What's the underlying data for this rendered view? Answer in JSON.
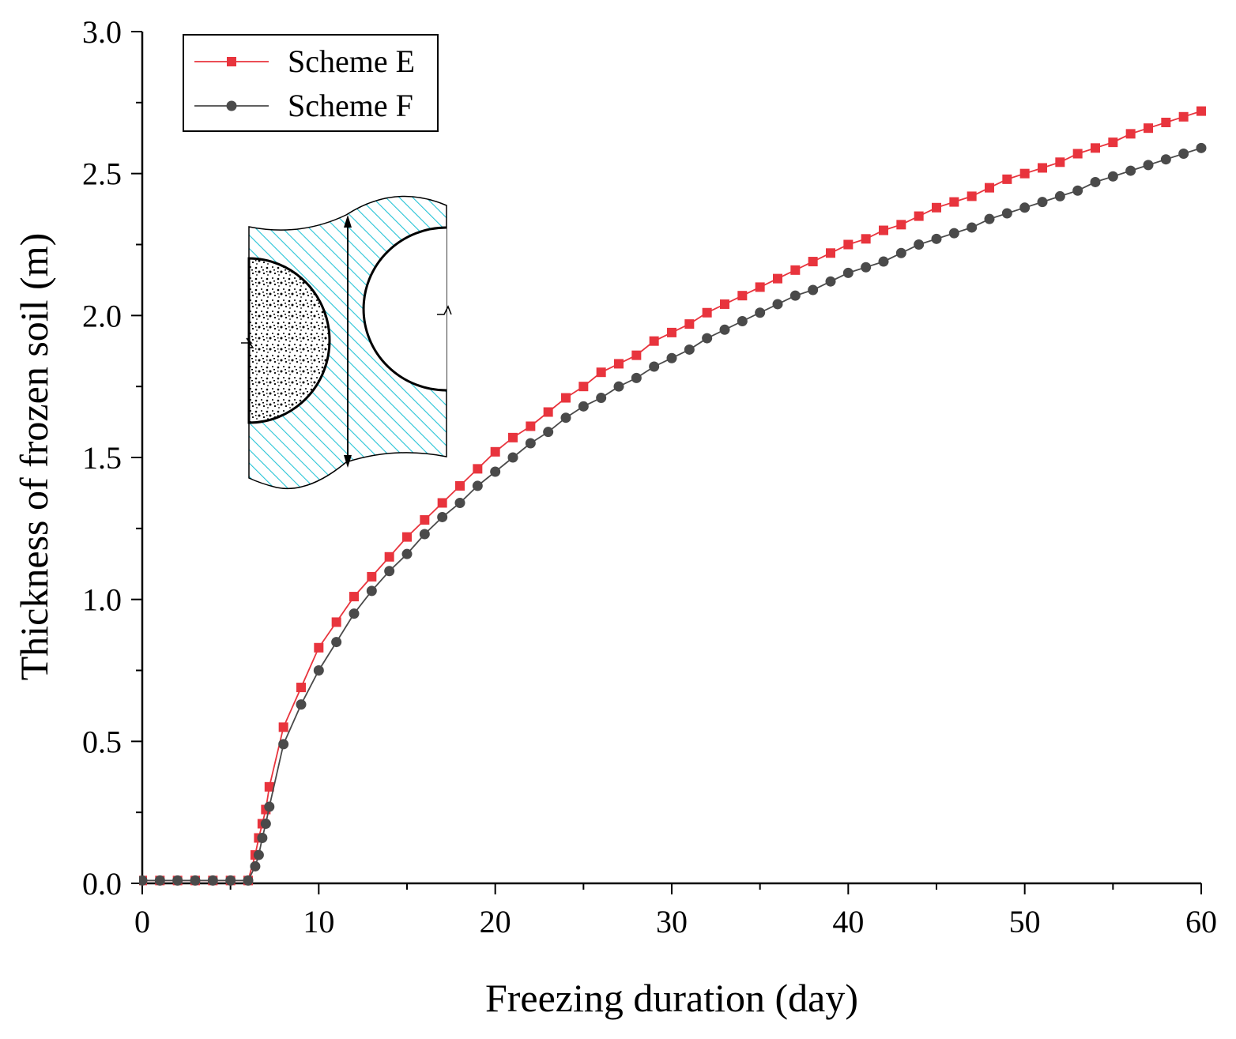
{
  "chart_data": {
    "type": "line",
    "title": "",
    "xlabel": "Freezing duration (day)",
    "ylabel": "Thickness of frozen soil (m)",
    "xlim": [
      0,
      60
    ],
    "ylim": [
      0.0,
      3.0
    ],
    "x_ticks": [
      "0",
      "10",
      "20",
      "30",
      "40",
      "50",
      "60"
    ],
    "y_ticks": [
      "0.0",
      "0.5",
      "1.0",
      "1.5",
      "2.0",
      "2.5",
      "3.0"
    ],
    "grid": false,
    "legend_position": "top-left",
    "series": [
      {
        "name": "Scheme E",
        "color": "#e8343d",
        "marker": "square",
        "x": [
          0,
          1,
          2,
          3,
          4,
          5,
          6,
          6.4,
          6.6,
          6.8,
          7,
          7.2,
          8,
          9,
          10,
          11,
          12,
          13,
          14,
          15,
          16,
          17,
          18,
          19,
          20,
          21,
          22,
          23,
          24,
          25,
          26,
          27,
          28,
          29,
          30,
          31,
          32,
          33,
          34,
          35,
          36,
          37,
          38,
          39,
          40,
          41,
          42,
          43,
          44,
          45,
          46,
          47,
          48,
          49,
          50,
          51,
          52,
          53,
          54,
          55,
          56,
          57,
          58,
          59,
          60
        ],
        "values": [
          0.01,
          0.01,
          0.01,
          0.01,
          0.01,
          0.01,
          0.01,
          0.1,
          0.16,
          0.21,
          0.26,
          0.34,
          0.55,
          0.69,
          0.83,
          0.92,
          1.01,
          1.08,
          1.15,
          1.22,
          1.28,
          1.34,
          1.4,
          1.46,
          1.52,
          1.57,
          1.61,
          1.66,
          1.71,
          1.75,
          1.8,
          1.83,
          1.86,
          1.91,
          1.94,
          1.97,
          2.01,
          2.04,
          2.07,
          2.1,
          2.13,
          2.16,
          2.19,
          2.22,
          2.25,
          2.27,
          2.3,
          2.32,
          2.35,
          2.38,
          2.4,
          2.42,
          2.45,
          2.48,
          2.5,
          2.52,
          2.54,
          2.57,
          2.59,
          2.61,
          2.64,
          2.66,
          2.68,
          2.7,
          2.72
        ]
      },
      {
        "name": "Scheme F",
        "color": "#4a4a4a",
        "marker": "circle",
        "x": [
          0,
          1,
          2,
          3,
          4,
          5,
          6,
          6.4,
          6.6,
          6.8,
          7,
          7.2,
          8,
          9,
          10,
          11,
          12,
          13,
          14,
          15,
          16,
          17,
          18,
          19,
          20,
          21,
          22,
          23,
          24,
          25,
          26,
          27,
          28,
          29,
          30,
          31,
          32,
          33,
          34,
          35,
          36,
          37,
          38,
          39,
          40,
          41,
          42,
          43,
          44,
          45,
          46,
          47,
          48,
          49,
          50,
          51,
          52,
          53,
          54,
          55,
          56,
          57,
          58,
          59,
          60
        ],
        "values": [
          0.01,
          0.01,
          0.01,
          0.01,
          0.01,
          0.01,
          0.01,
          0.06,
          0.1,
          0.16,
          0.21,
          0.27,
          0.49,
          0.63,
          0.75,
          0.85,
          0.95,
          1.03,
          1.1,
          1.16,
          1.23,
          1.29,
          1.34,
          1.4,
          1.45,
          1.5,
          1.55,
          1.59,
          1.64,
          1.68,
          1.71,
          1.75,
          1.78,
          1.82,
          1.85,
          1.88,
          1.92,
          1.95,
          1.98,
          2.01,
          2.04,
          2.07,
          2.09,
          2.12,
          2.15,
          2.17,
          2.19,
          2.22,
          2.25,
          2.27,
          2.29,
          2.31,
          2.34,
          2.36,
          2.38,
          2.4,
          2.42,
          2.44,
          2.47,
          2.49,
          2.51,
          2.53,
          2.55,
          2.57,
          2.59
        ]
      }
    ]
  }
}
